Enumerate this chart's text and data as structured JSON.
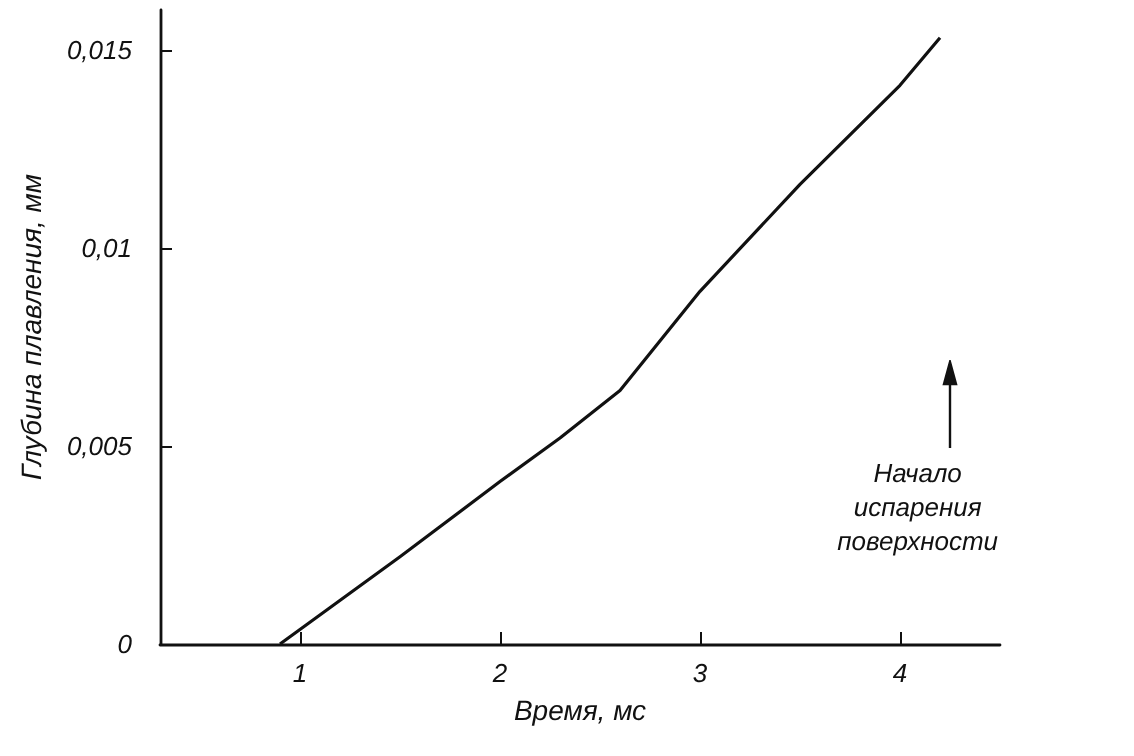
{
  "chart_data": {
    "type": "line",
    "xlabel": "Время, мс",
    "ylabel": "Глубина плавления, мм",
    "x": [
      0.9,
      1.5,
      2,
      2.3,
      2.6,
      3,
      3.5,
      4,
      4.2
    ],
    "series": [
      {
        "color": "#111111",
        "values": [
          0,
          0.0022,
          0.0041,
          0.0052,
          0.0064,
          0.0089,
          0.0116,
          0.0141,
          0.0153
        ]
      }
    ],
    "xlim": [
      0.3,
      4.5
    ],
    "xticks": [
      1,
      2,
      3,
      4
    ],
    "ylim": [
      0,
      0.016
    ],
    "yticks": [
      0,
      {
        "value": 0.005,
        "label": "0,005"
      },
      {
        "value": 0.01,
        "label": "0,01"
      },
      {
        "value": 0.015,
        "label": "0,015"
      }
    ],
    "grid": false,
    "marker": "none",
    "line_style": "solid",
    "annotations": [
      "Начало\nиспарения\nповерхности"
    ]
  }
}
